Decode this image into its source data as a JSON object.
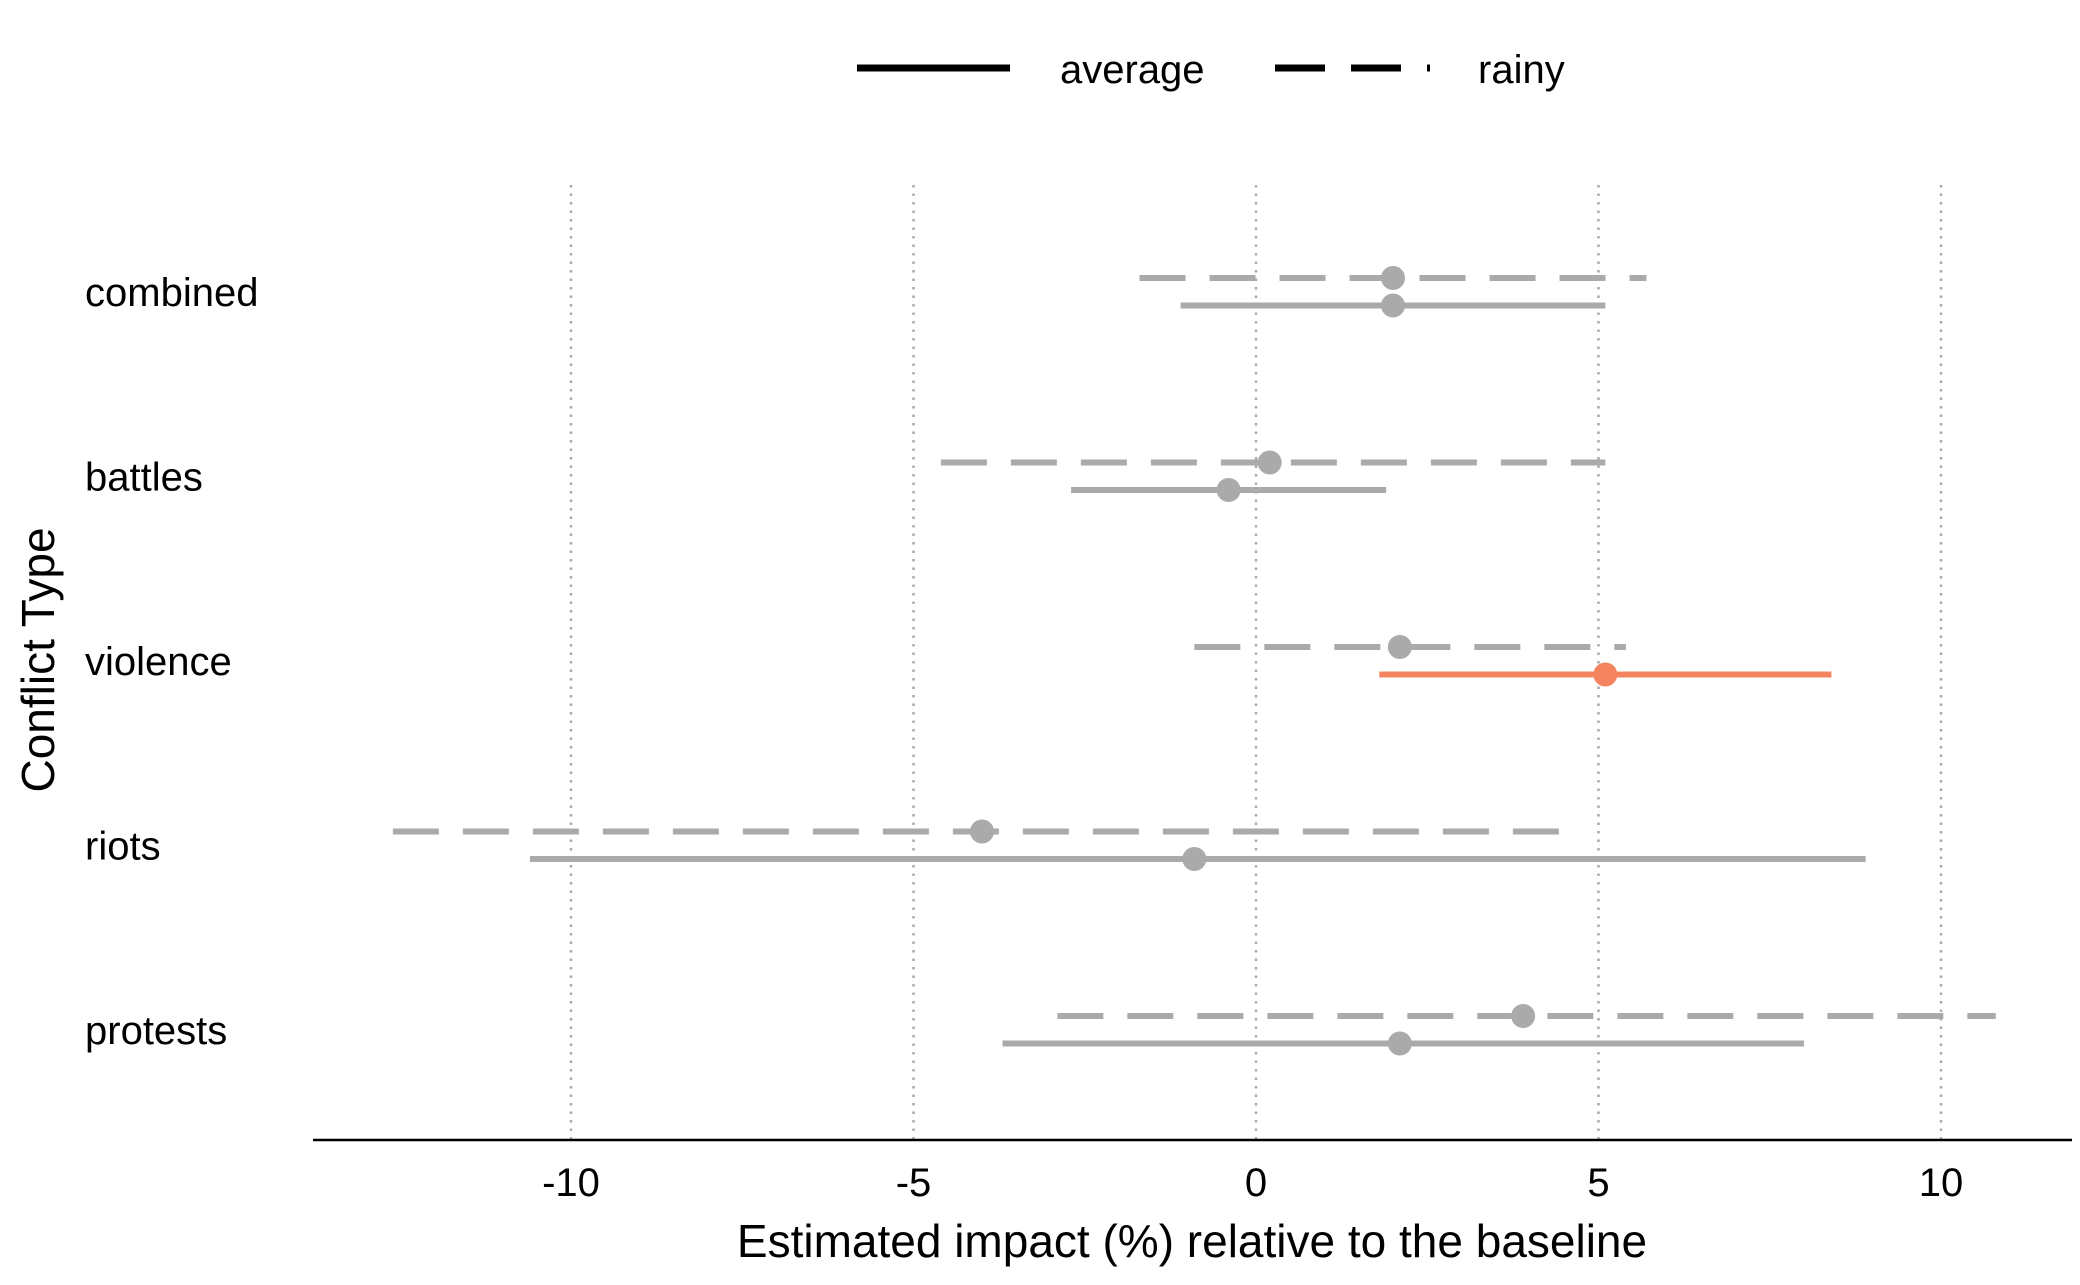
{
  "chart_data": {
    "type": "errorbar",
    "title": "",
    "xlabel": "Estimated impact (%) relative to the baseline",
    "ylabel": "Conflict Type",
    "xlim": [
      -13.8,
      11.8
    ],
    "xticks": [
      -10,
      -5,
      0,
      5,
      10
    ],
    "xtick_labels": [
      "-10",
      "-5",
      "0",
      "5",
      "10"
    ],
    "grid": "vertical dotted",
    "legend_position": "top-center",
    "categories": [
      "combined",
      "battles",
      "violence",
      "riots",
      "protests"
    ],
    "series": [
      {
        "name": "average",
        "line_style": "solid",
        "points": [
          {
            "category": "combined",
            "estimate": 2.0,
            "low": -1.1,
            "high": 5.1,
            "color": "#aaaaaa"
          },
          {
            "category": "battles",
            "estimate": -0.4,
            "low": -2.7,
            "high": 1.9,
            "color": "#aaaaaa"
          },
          {
            "category": "violence",
            "estimate": 5.1,
            "low": 1.8,
            "high": 8.4,
            "color": "#f4845f"
          },
          {
            "category": "riots",
            "estimate": -0.9,
            "low": -10.6,
            "high": 8.9,
            "color": "#aaaaaa"
          },
          {
            "category": "protests",
            "estimate": 2.1,
            "low": -3.7,
            "high": 8.0,
            "color": "#aaaaaa"
          }
        ]
      },
      {
        "name": "rainy",
        "line_style": "dashed",
        "points": [
          {
            "category": "combined",
            "estimate": 2.0,
            "low": -1.7,
            "high": 5.7,
            "color": "#aaaaaa"
          },
          {
            "category": "battles",
            "estimate": 0.2,
            "low": -4.6,
            "high": 5.1,
            "color": "#aaaaaa"
          },
          {
            "category": "violence",
            "estimate": 2.1,
            "low": -0.9,
            "high": 5.4,
            "color": "#aaaaaa"
          },
          {
            "category": "riots",
            "estimate": -4.0,
            "low": -12.6,
            "high": 4.7,
            "color": "#aaaaaa"
          },
          {
            "category": "protests",
            "estimate": 3.9,
            "low": -2.9,
            "high": 10.8,
            "color": "#aaaaaa"
          }
        ]
      }
    ],
    "colors": {
      "default": "#aaaaaa",
      "highlight": "#f4845f",
      "grid": "#aaaaaa",
      "axis": "#000000"
    }
  }
}
